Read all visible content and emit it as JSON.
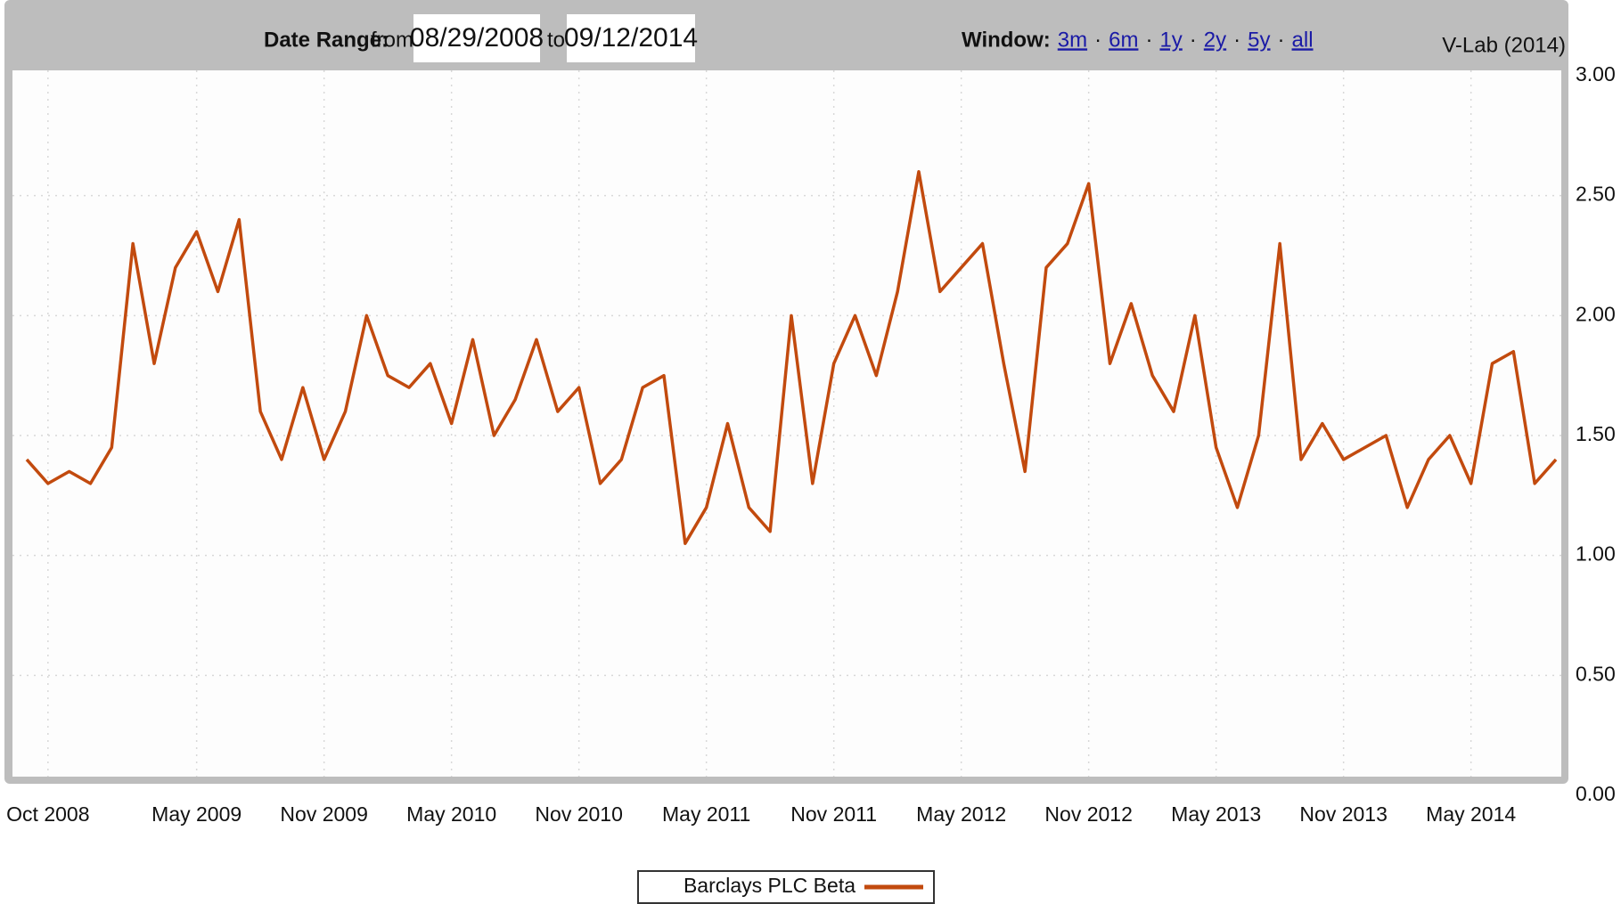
{
  "controls": {
    "date_range_label": "Date Range:",
    "from_label": "from",
    "from_date": "08/29/2008",
    "to_label": "to",
    "to_date": "09/12/2014",
    "window_label": "Window:",
    "windows": [
      "3m",
      "6m",
      "1y",
      "2y",
      "5y",
      "all"
    ],
    "window_separator": "·",
    "source": "V-Lab (2014)"
  },
  "chart_data": {
    "type": "line",
    "x": [
      "2008-09",
      "2008-10",
      "2008-11",
      "2008-12",
      "2009-01",
      "2009-02",
      "2009-03",
      "2009-04",
      "2009-05",
      "2009-06",
      "2009-07",
      "2009-08",
      "2009-09",
      "2009-10",
      "2009-11",
      "2009-12",
      "2010-01",
      "2010-02",
      "2010-03",
      "2010-04",
      "2010-05",
      "2010-06",
      "2010-07",
      "2010-08",
      "2010-09",
      "2010-10",
      "2010-11",
      "2010-12",
      "2011-01",
      "2011-02",
      "2011-03",
      "2011-04",
      "2011-05",
      "2011-06",
      "2011-07",
      "2011-08",
      "2011-09",
      "2011-10",
      "2011-11",
      "2011-12",
      "2012-01",
      "2012-02",
      "2012-03",
      "2012-04",
      "2012-05",
      "2012-06",
      "2012-07",
      "2012-08",
      "2012-09",
      "2012-10",
      "2012-11",
      "2012-12",
      "2013-01",
      "2013-02",
      "2013-03",
      "2013-04",
      "2013-05",
      "2013-06",
      "2013-07",
      "2013-08",
      "2013-09",
      "2013-10",
      "2013-11",
      "2013-12",
      "2014-01",
      "2014-02",
      "2014-03",
      "2014-04",
      "2014-05",
      "2014-06",
      "2014-07",
      "2014-08",
      "2014-09"
    ],
    "series": [
      {
        "name": "Barclays PLC Beta",
        "color": "#c24a0e",
        "values": [
          1.4,
          1.3,
          1.35,
          1.3,
          1.45,
          2.3,
          1.8,
          2.2,
          2.35,
          2.1,
          2.4,
          1.6,
          1.4,
          1.7,
          1.4,
          1.6,
          2.0,
          1.75,
          1.7,
          1.8,
          1.55,
          1.9,
          1.5,
          1.65,
          1.9,
          1.6,
          1.7,
          1.3,
          1.4,
          1.7,
          1.75,
          1.05,
          1.2,
          1.55,
          1.2,
          1.1,
          2.0,
          1.3,
          1.8,
          2.0,
          1.75,
          2.1,
          2.6,
          2.1,
          2.2,
          2.3,
          1.8,
          1.35,
          2.2,
          2.3,
          2.55,
          1.8,
          2.05,
          1.75,
          1.6,
          2.0,
          1.45,
          1.2,
          1.5,
          2.3,
          1.4,
          1.55,
          1.4,
          1.45,
          1.5,
          1.2,
          1.4,
          1.5,
          1.3,
          1.8,
          1.85,
          1.3,
          1.4
        ]
      }
    ],
    "xlim": [
      "2008-09",
      "2014-09"
    ],
    "xticks": [
      {
        "value": "2008-10",
        "label": "Oct 2008"
      },
      {
        "value": "2009-05",
        "label": "May 2009"
      },
      {
        "value": "2009-11",
        "label": "Nov 2009"
      },
      {
        "value": "2010-05",
        "label": "May 2010"
      },
      {
        "value": "2010-11",
        "label": "Nov 2010"
      },
      {
        "value": "2011-05",
        "label": "May 2011"
      },
      {
        "value": "2011-11",
        "label": "Nov 2011"
      },
      {
        "value": "2012-05",
        "label": "May 2012"
      },
      {
        "value": "2012-11",
        "label": "Nov 2012"
      },
      {
        "value": "2013-05",
        "label": "May 2013"
      },
      {
        "value": "2013-11",
        "label": "Nov 2013"
      },
      {
        "value": "2014-05",
        "label": "May 2014"
      }
    ],
    "ylim": [
      0,
      3
    ],
    "yticks": [
      {
        "value": 0,
        "label": "0.00"
      },
      {
        "value": 0.5,
        "label": "0.50"
      },
      {
        "value": 1,
        "label": "1.00"
      },
      {
        "value": 1.5,
        "label": "1.50"
      },
      {
        "value": 2,
        "label": "2.00"
      },
      {
        "value": 2.5,
        "label": "2.50"
      },
      {
        "value": 3,
        "label": "3.00"
      }
    ],
    "grid": true,
    "legend": "bottom"
  }
}
